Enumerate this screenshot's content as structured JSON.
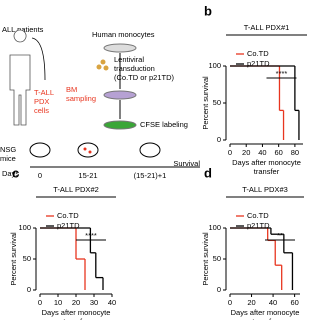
{
  "schematic": {
    "patients": "ALL patients",
    "pdx": [
      "T-ALL",
      "PDX",
      "cells"
    ],
    "monocytes": "Human monocytes",
    "transduction": [
      "Lentiviral",
      "transduction",
      "(Co.TD or p21TD)"
    ],
    "bm": [
      "BM",
      "sampling"
    ],
    "cfse": "CFSE labeling",
    "mice": [
      "NSG",
      "mice"
    ],
    "timeline": {
      "label": "Days",
      "ticks": [
        "0",
        "15-21",
        "(15-21)+1"
      ],
      "end": "Survival"
    }
  },
  "chart_data": [
    {
      "type": "survival",
      "panel": "b",
      "title": "T-ALL PDX#1",
      "ylabel": "Percent survival",
      "xlabel": [
        "Days after monocyte",
        "transfer"
      ],
      "significance": "****",
      "xlim": [
        0,
        90
      ],
      "xticks": [
        0,
        20,
        40,
        60,
        80
      ],
      "ylim": [
        0,
        100
      ],
      "yticks": [
        0,
        50,
        100
      ],
      "series": [
        {
          "name": "Co.TD",
          "color": "#e8351f",
          "x": [
            0,
            61,
            66
          ],
          "values": [
            100,
            40,
            0
          ]
        },
        {
          "name": "p21TD",
          "color": "#000000",
          "x": [
            0,
            80,
            85
          ],
          "values": [
            100,
            40,
            0
          ]
        }
      ]
    },
    {
      "type": "survival",
      "panel": "c",
      "title": "T-ALL PDX#2",
      "ylabel": "Percent survival",
      "xlabel": [
        "Days after monocyte",
        "transfer"
      ],
      "significance": "****",
      "xlim": [
        0,
        40
      ],
      "xticks": [
        0,
        10,
        20,
        30,
        40
      ],
      "ylim": [
        0,
        100
      ],
      "yticks": [
        0,
        50,
        100
      ],
      "series": [
        {
          "name": "Co.TD",
          "color": "#e8351f",
          "x": [
            0,
            20,
            25
          ],
          "values": [
            100,
            50,
            0
          ]
        },
        {
          "name": "p21TD",
          "color": "#000000",
          "x": [
            0,
            28,
            31,
            35
          ],
          "values": [
            100,
            60,
            20,
            0
          ]
        }
      ]
    },
    {
      "type": "survival",
      "panel": "d",
      "title": "T-ALL PDX#3",
      "ylabel": "Percent survival",
      "xlabel": [
        "Days after monocyte",
        "transfer"
      ],
      "significance": "**",
      "xlim": [
        0,
        65
      ],
      "xticks": [
        0,
        20,
        40,
        60
      ],
      "ylim": [
        0,
        100
      ],
      "yticks": [
        0,
        50,
        100
      ],
      "series": [
        {
          "name": "Co.TD",
          "color": "#e8351f",
          "x": [
            0,
            35,
            42,
            48
          ],
          "values": [
            100,
            80,
            40,
            0
          ]
        },
        {
          "name": "p21TD",
          "color": "#000000",
          "x": [
            0,
            38,
            50,
            58
          ],
          "values": [
            100,
            90,
            60,
            0
          ]
        }
      ]
    }
  ]
}
